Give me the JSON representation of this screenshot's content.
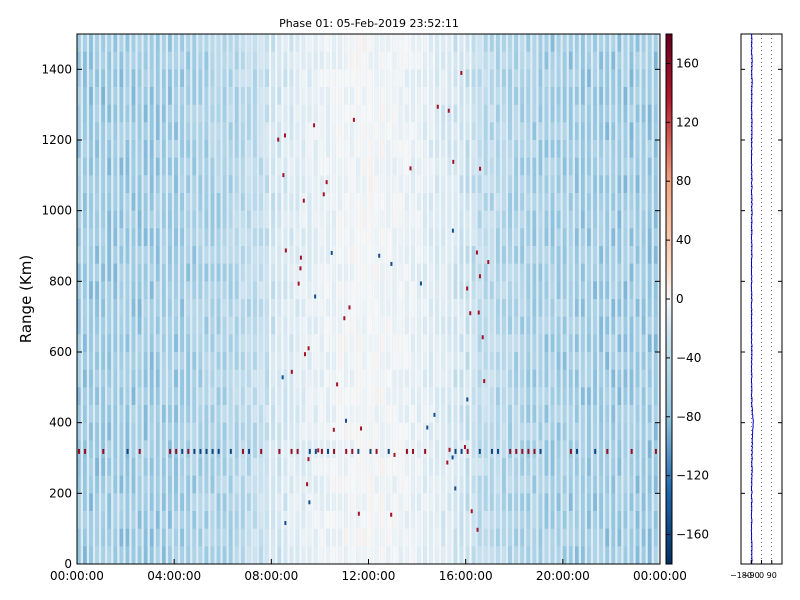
{
  "chart_data": [
    {
      "type": "heatmap",
      "title": "Phase 01: 05-Feb-2019 23:52:11",
      "ylabel": "Range (Km)",
      "xlabel": "",
      "x_tick_labels": [
        "00:00:00",
        "04:00:00",
        "08:00:00",
        "12:00:00",
        "16:00:00",
        "20:00:00",
        "00:00:00"
      ],
      "x_range_hours": [
        0,
        24
      ],
      "y_ticks": [
        0,
        200,
        400,
        600,
        800,
        1000,
        1200,
        1400
      ],
      "ylim": [
        0,
        1500
      ],
      "colorbar": {
        "ticks": [
          160,
          120,
          80,
          40,
          0,
          -40,
          -80,
          -120,
          -160
        ],
        "tick_labels": [
          "160",
          "120",
          "80",
          "40",
          "0",
          "−40",
          "−80",
          "−120",
          "−160"
        ],
        "range": [
          -180,
          180
        ],
        "colormap": "RdBu_r",
        "low_color": "#0a3068",
        "mid_color": "#f7f7f7",
        "high_color": "#67001f"
      },
      "description_values": {
        "background_phase": -75,
        "center_phase": -30,
        "center_hour": 12,
        "strong_band_range_km": 320
      },
      "grid": false
    },
    {
      "type": "line",
      "title": "",
      "ylim": [
        0,
        1500
      ],
      "xlim": [
        -180,
        180
      ],
      "x_tick_labels": [
        "−180",
        "−90",
        "0",
        "90"
      ],
      "x_ticks": [
        -180,
        -90,
        0,
        90
      ],
      "series_color": "#0000cc",
      "profile": [
        [
          0,
          -85
        ],
        [
          100,
          -87
        ],
        [
          200,
          -86
        ],
        [
          260,
          -84
        ],
        [
          300,
          -83
        ],
        [
          330,
          -82
        ],
        [
          360,
          -80
        ],
        [
          380,
          -75
        ],
        [
          395,
          -72
        ],
        [
          410,
          -76
        ],
        [
          430,
          -82
        ],
        [
          480,
          -86
        ],
        [
          600,
          -86
        ],
        [
          800,
          -87
        ],
        [
          1000,
          -85
        ],
        [
          1200,
          -86
        ],
        [
          1400,
          -84
        ],
        [
          1500,
          -85
        ]
      ],
      "grid": "dotted-vertical"
    }
  ]
}
